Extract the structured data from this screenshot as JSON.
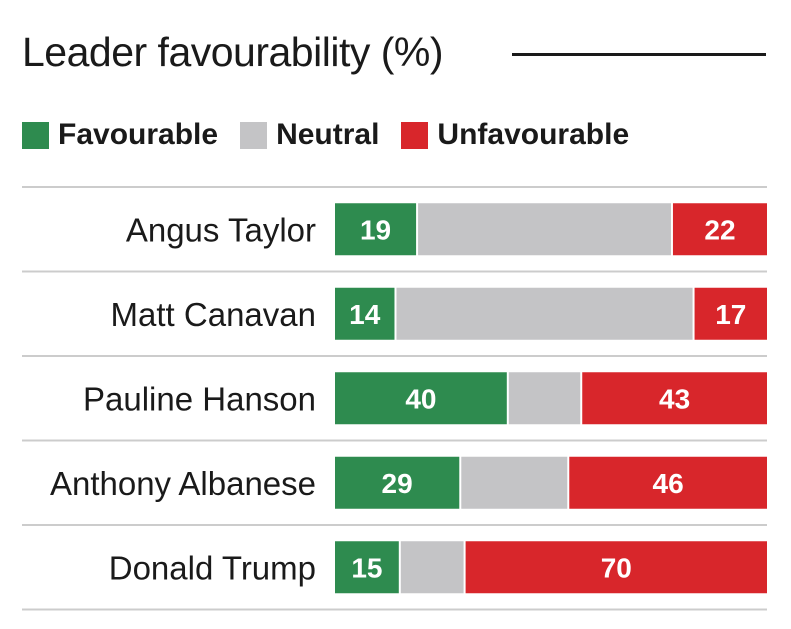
{
  "colors": {
    "favourable": "#2e8b4f",
    "neutral": "#c4c4c6",
    "unfavourable": "#d8262b",
    "rule": "#cccccc",
    "text": "#1a1a1a"
  },
  "chart_data": {
    "type": "bar",
    "orientation": "horizontal",
    "stacked": true,
    "title": "Leader favourability (%)",
    "categories": [
      "Angus Taylor",
      "Matt Canavan",
      "Pauline Hanson",
      "Anthony Albanese",
      "Donald Trump"
    ],
    "series": [
      {
        "name": "Favourable",
        "color": "#2e8b4f",
        "values": [
          19,
          14,
          40,
          29,
          15
        ],
        "labeled": true
      },
      {
        "name": "Neutral",
        "color": "#c4c4c6",
        "values": [
          59,
          69,
          17,
          25,
          15
        ],
        "labeled": false
      },
      {
        "name": "Unfavourable",
        "color": "#d8262b",
        "values": [
          22,
          17,
          43,
          46,
          70
        ],
        "labeled": true
      }
    ],
    "xlim": [
      0,
      100
    ],
    "legend": "top-left"
  }
}
